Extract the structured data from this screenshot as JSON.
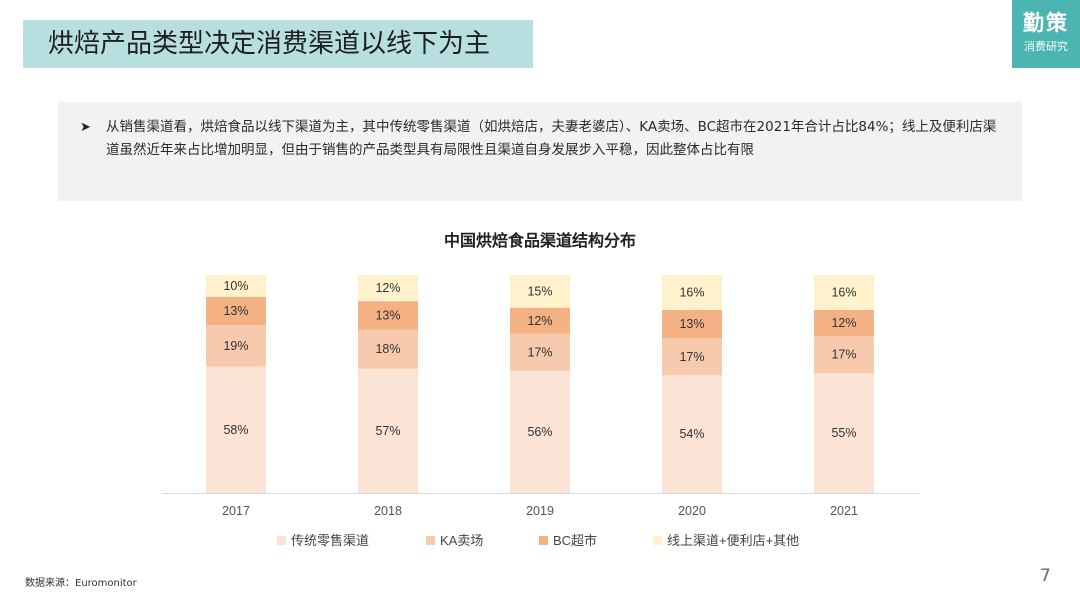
{
  "header": {
    "title": "烘焙产品类型决定消费渠道以线下为主"
  },
  "logo": {
    "main": "勤策",
    "sub": "消费研究"
  },
  "summary": {
    "bullet": "➤",
    "text": "从销售渠道看，烘焙食品以线下渠道为主，其中传统零售渠道（如烘焙店，夫妻老婆店）、KA卖场、BC超市在2021年合计占比84%；线上及便利店渠道虽然近年来占比增加明显，但由于销售的产品类型具有局限性且渠道自身发展步入平稳，因此整体占比有限"
  },
  "chart_data": {
    "type": "bar",
    "stacked": true,
    "title": "中国烘焙食品渠道结构分布",
    "categories": [
      "2017",
      "2018",
      "2019",
      "2020",
      "2021"
    ],
    "series": [
      {
        "name": "传统零售渠道",
        "values": [
          58,
          57,
          56,
          54,
          55
        ],
        "labels": [
          "58%",
          "57%",
          "56%",
          "54%",
          "55%"
        ],
        "color": "#fbe3d6"
      },
      {
        "name": "KA卖场",
        "values": [
          19,
          18,
          17,
          17,
          17
        ],
        "labels": [
          "19%",
          "18%",
          "17%",
          "17%",
          "17%"
        ],
        "color": "#f8caad"
      },
      {
        "name": "BC超市",
        "values": [
          13,
          13,
          12,
          13,
          12
        ],
        "labels": [
          "13%",
          "13%",
          "12%",
          "13%",
          "12%"
        ],
        "color": "#f4b183"
      },
      {
        "name": "线上渠道+便利店+其他",
        "values": [
          10,
          12,
          15,
          16,
          16
        ],
        "labels": [
          "10%",
          "12%",
          "15%",
          "16%",
          "16%"
        ],
        "color": "#fff2cc"
      }
    ],
    "ylim": [
      0,
      100
    ],
    "grid": false,
    "legend": "bottom"
  },
  "footer": {
    "source": "数据来源：Euromonitor",
    "page": "7"
  }
}
